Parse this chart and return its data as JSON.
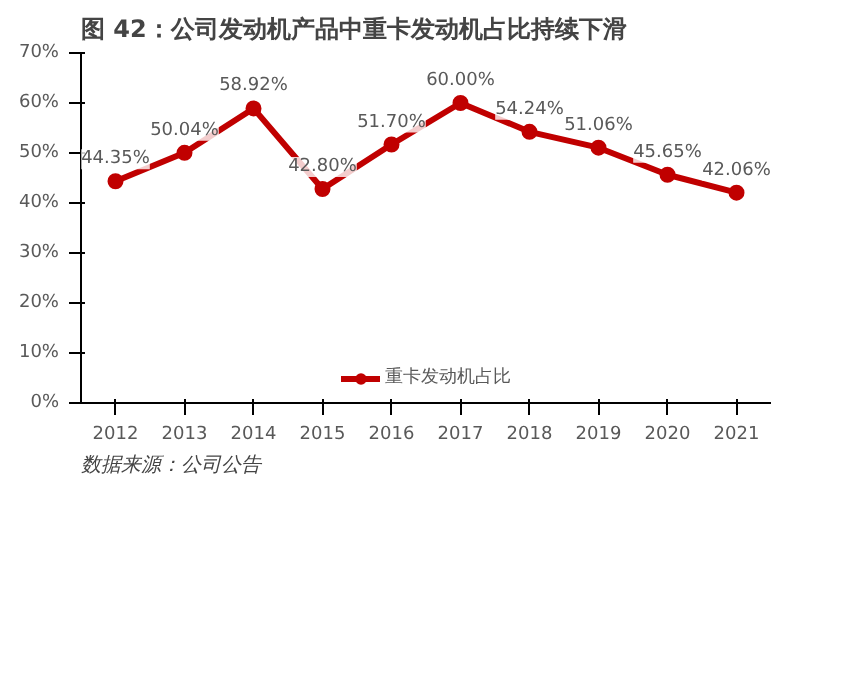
{
  "chart_data": {
    "type": "line",
    "title": "图 42：公司发动机产品中重卡发动机占比持续下滑",
    "categories": [
      "2012",
      "2013",
      "2014",
      "2015",
      "2016",
      "2017",
      "2018",
      "2019",
      "2020",
      "2021"
    ],
    "series": [
      {
        "name": "重卡发动机占比",
        "color": "#c00000",
        "values": [
          44.35,
          50.04,
          58.92,
          42.8,
          51.7,
          60.0,
          54.24,
          51.06,
          45.65,
          42.06
        ],
        "value_labels": [
          "44.35%",
          "50.04%",
          "58.92%",
          "42.80%",
          "51.70%",
          "60.00%",
          "54.24%",
          "51.06%",
          "45.65%",
          "42.06%"
        ]
      }
    ],
    "ylim": [
      0,
      70
    ],
    "yticks": [
      {
        "value": 0,
        "label": "0%"
      },
      {
        "value": 10,
        "label": "10%"
      },
      {
        "value": 20,
        "label": "20%"
      },
      {
        "value": 30,
        "label": "30%"
      },
      {
        "value": 40,
        "label": "40%"
      },
      {
        "value": 50,
        "label": "50%"
      },
      {
        "value": 60,
        "label": "60%"
      },
      {
        "value": 70,
        "label": "70%"
      }
    ],
    "grid": false,
    "legend": "bottom",
    "marker": "circle",
    "line_style": "solid",
    "annotations": [
      "数据来源：公司公告"
    ]
  }
}
